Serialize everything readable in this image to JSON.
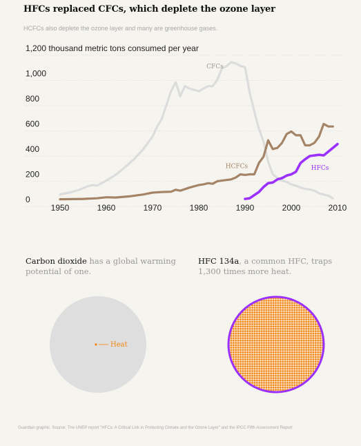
{
  "title": "HFCs replaced CFCs, which deplete the ozone layer",
  "subtitle": "HCFCs also deplete the ozone layer and many are greenhouse gases.",
  "colors": {
    "background": "#f6f4ef",
    "cfc": "#dcdcdc",
    "hcfc": "#a58366",
    "hfc": "#9b30ff",
    "co2_circle": "#dedede",
    "heat": "#f0850d"
  },
  "chart_data": {
    "type": "line",
    "ylabel": "thousand metric tons consumed per year",
    "xlim": [
      1950,
      2010
    ],
    "ylim": [
      0,
      1200
    ],
    "yticks": [
      {
        "value": 1200,
        "label": "1,200 thousand metric tons consumed per year"
      },
      {
        "value": 1000,
        "label": "1,000"
      },
      {
        "value": 800,
        "label": "800"
      },
      {
        "value": 600,
        "label": "600"
      },
      {
        "value": 400,
        "label": "400"
      },
      {
        "value": 200,
        "label": "200"
      },
      {
        "value": 0,
        "label": "0"
      }
    ],
    "xticks": [
      "1950",
      "1960",
      "1970",
      "1980",
      "1990",
      "2000",
      "2010"
    ],
    "grid": true,
    "series": [
      {
        "name": "CFCs",
        "x": [
          1950,
          1952,
          1954,
          1956,
          1957,
          1958,
          1960,
          1962,
          1964,
          1966,
          1968,
          1970,
          1971,
          1972,
          1973,
          1974,
          1975,
          1976,
          1977,
          1978,
          1979,
          1980,
          1981,
          1982,
          1983,
          1984,
          1985,
          1986,
          1987,
          1988,
          1989,
          1990,
          1991,
          1992,
          1993,
          1994,
          1995,
          1996,
          1997,
          1998,
          1999,
          2000,
          2001,
          2002,
          2003,
          2004,
          2005,
          2006,
          2007,
          2008,
          2009
        ],
        "y": [
          40,
          55,
          75,
          105,
          115,
          110,
          150,
          195,
          255,
          320,
          400,
          500,
          580,
          640,
          750,
          860,
          930,
          820,
          900,
          880,
          870,
          860,
          880,
          900,
          900,
          950,
          1040,
          1060,
          1090,
          1080,
          1060,
          1050,
          850,
          700,
          560,
          460,
          300,
          200,
          170,
          150,
          140,
          120,
          110,
          95,
          85,
          80,
          70,
          50,
          40,
          30,
          10
        ]
      },
      {
        "name": "HCFCs",
        "x": [
          1950,
          1955,
          1958,
          1960,
          1962,
          1965,
          1968,
          1970,
          1972,
          1974,
          1975,
          1976,
          1978,
          1980,
          1981,
          1982,
          1983,
          1984,
          1985,
          1986,
          1987,
          1988,
          1989,
          1990,
          1991,
          1992,
          1993,
          1994,
          1995,
          1996,
          1997,
          1998,
          1999,
          2000,
          2001,
          2002,
          2003,
          2004,
          2005,
          2006,
          2007,
          2008,
          2009
        ],
        "y": [
          2,
          5,
          10,
          18,
          16,
          25,
          40,
          55,
          60,
          62,
          78,
          70,
          95,
          115,
          120,
          130,
          125,
          145,
          150,
          155,
          160,
          175,
          200,
          195,
          200,
          200,
          290,
          340,
          470,
          400,
          410,
          450,
          520,
          540,
          510,
          510,
          430,
          430,
          450,
          500,
          600,
          580,
          580
        ]
      },
      {
        "name": "HFCs",
        "x": [
          1990,
          1991,
          1992,
          1993,
          1994,
          1995,
          1996,
          1997,
          1998,
          1999,
          2000,
          2001,
          2002,
          2003,
          2004,
          2005,
          2006,
          2007,
          2008,
          2009,
          2010
        ],
        "y": [
          5,
          10,
          35,
          60,
          100,
          130,
          135,
          160,
          170,
          190,
          200,
          220,
          290,
          320,
          345,
          350,
          355,
          350,
          380,
          410,
          440
        ]
      }
    ]
  },
  "compare": {
    "co2": {
      "highlight": "Carbon dioxide",
      "rest": " has a global warming potential of one."
    },
    "hfc": {
      "highlight": "HFC 134a",
      "rest": ", a common HFC, traps 1,300 times more heat."
    },
    "heat_label": "Heat"
  },
  "footer": "Guardian graphic. Source: The UNEP report \"HFCs: A Critical Link in Protecting Climate and the Ozone Layer\" and the IPCC Fifth Assessment Report"
}
